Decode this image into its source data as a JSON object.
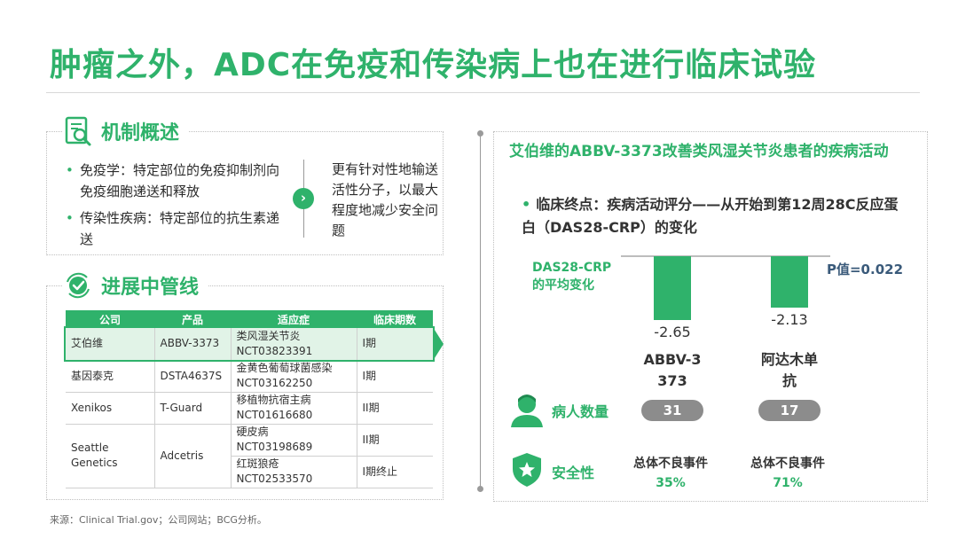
{
  "title": "肿瘤之外，ADC在免疫和传染病上也在进行临床试验",
  "mechanism": {
    "heading": "机制概述",
    "bullets": [
      "免疫学：特定部位的免疫抑制剂向免疫细胞递送和释放",
      "传染性疾病：特定部位的抗生素递送"
    ],
    "summary": "更有针对性地输送活性分子，以最大程度地减少安全问题"
  },
  "pipeline": {
    "heading": "进展中管线",
    "columns": [
      "公司",
      "产品",
      "适应症",
      "临床期数"
    ],
    "rows": [
      {
        "company": "艾伯维",
        "product": "ABBV-3373",
        "indication": "类风湿关节炎",
        "nct": "NCT03823391",
        "phase": "I期"
      },
      {
        "company": "基因泰克",
        "product": "DSTA4637S",
        "indication": "金黄色葡萄球菌感染",
        "nct": "NCT03162250",
        "phase": "I期"
      },
      {
        "company": "Xenikos",
        "product": "T-Guard",
        "indication": "移植物抗宿主病",
        "nct": "NCT01616680",
        "phase": "II期"
      },
      {
        "company": "Seattle Genetics",
        "product": "Adcetris",
        "indication": "硬皮病",
        "nct": "NCT03198689",
        "phase": "II期"
      },
      {
        "company": "",
        "product": "",
        "indication": "红斑狼疮",
        "nct": "NCT02533570",
        "phase": "I期终止"
      }
    ]
  },
  "source": "来源：Clinical Trial.gov；公司网站；BCG分析。",
  "trial": {
    "title": "艾伯维的ABBV-3373改善类风湿关节炎患者的疾病活动",
    "endpoint": "临床终点：疾病活动评分——从开始到第12周28C反应蛋白（DAS28-CRP）的变化",
    "metric_label": "DAS28-CRP的平均变化",
    "p_value": "P值=0.022",
    "patients_label": "病人数量",
    "safety_label": "安全性",
    "adverse_label": "总体不良事件"
  },
  "chart_data": {
    "type": "bar",
    "categories": [
      "ABBV-3373",
      "阿达木单抗"
    ],
    "values": [
      -2.65,
      -2.13
    ],
    "value_labels": [
      "-2.65",
      "-2.13"
    ],
    "patients": [
      "31",
      "17"
    ],
    "adverse_events": [
      "35%",
      "71%"
    ],
    "ylabel": "DAS28-CRP的平均变化",
    "ylim": [
      -3,
      0
    ]
  },
  "colors": {
    "accent": "#2fb26b",
    "pill": "#8c8c8c",
    "p_value": "#3a5a7a"
  }
}
